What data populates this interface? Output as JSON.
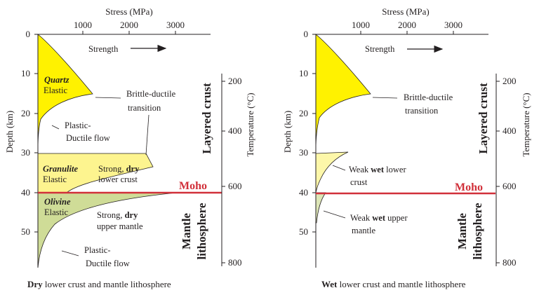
{
  "stress_axis_title": "Stress (MPa)",
  "stress_ticks": [
    "1000",
    "2000",
    "3000"
  ],
  "depth_axis_title": "Depth (km)",
  "depth_ticks": [
    "0",
    "10",
    "20",
    "30",
    "40",
    "50"
  ],
  "temp_axis_title": "Temperature (°C)",
  "temp_ticks": [
    "200",
    "400",
    "600",
    "800"
  ],
  "strength_label": "Strength",
  "moho_label": "Moho",
  "layered_crust_label": "Layered  crust",
  "mantle_label": "Mantle",
  "lithosphere_label": "lithosphere",
  "colors": {
    "quartz": "#fff200",
    "granulite_dry": "#fdf48f",
    "olivine_dry": "#cfdc97",
    "granulite_wet": "#fdf7a9",
    "olivine_wet": "#dde6b7",
    "moho": "#d1303a"
  },
  "panels": [
    {
      "layers": {
        "quartz": {
          "name": "Quartz",
          "rheology": "Elastic"
        },
        "granulite": {
          "name": "Granulite",
          "rheology": "Elastic"
        },
        "olivine": {
          "name": "Olivine",
          "rheology": "Elastic"
        }
      },
      "notes": {
        "brittle_ductile_1": "Brittle-ductile",
        "brittle_ductile_2": "transition",
        "plastic_upper_1": "Plastic-",
        "plastic_upper_2": "Ductile flow",
        "strong_crust_pre": "Strong, ",
        "strong_crust_bold": "dry",
        "strong_crust_2": "lower crust",
        "strong_mantle_pre": "Strong, ",
        "strong_mantle_bold": "dry",
        "strong_mantle_2": "upper mantle",
        "plastic_lower_1": "Plastic-",
        "plastic_lower_2": "Ductile flow"
      },
      "caption_bold": "Dry",
      "caption_rest": " lower crust and mantle lithosphere"
    },
    {
      "notes": {
        "brittle_ductile_1": "Brittle-ductile",
        "brittle_ductile_2": "transition",
        "weak_crust_pre": "Weak ",
        "weak_crust_bold": "wet",
        "weak_crust_post": " lower",
        "weak_crust_2": "crust",
        "weak_mantle_pre": "Weak ",
        "weak_mantle_bold": "wet",
        "weak_mantle_post": " upper",
        "weak_mantle_2": "mantle"
      },
      "caption_bold": "Wet",
      "caption_rest": " lower crust and mantle lithosphere"
    }
  ]
}
